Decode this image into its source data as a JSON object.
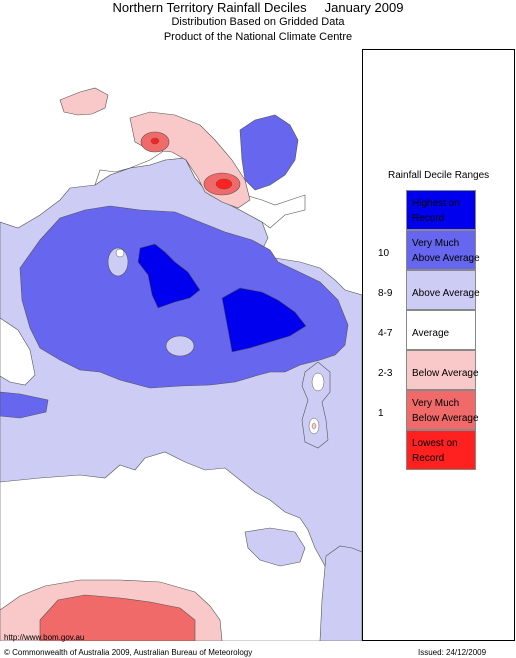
{
  "title": "Northern Territory Rainfall Deciles     January 2009",
  "subtitle1": "Distribution Based on Gridded Data",
  "subtitle2": "Product of the National Climate Centre",
  "legend": {
    "title": "Rainfall Decile Ranges",
    "items": [
      {
        "label": "Highest on\nRecord",
        "rank": "",
        "color": "#0000ee"
      },
      {
        "label": "Very Much\nAbove Average",
        "rank": "10",
        "color": "#6666ee"
      },
      {
        "label": "Above Average",
        "rank": "8-9",
        "color": "#ccccf5"
      },
      {
        "label": "Average",
        "rank": "4-7",
        "color": "#ffffff"
      },
      {
        "label": "Below Average",
        "rank": "2-3",
        "color": "#f9c8c8"
      },
      {
        "label": "Very Much\nBelow Average",
        "rank": "1",
        "color": "#f06a6a"
      },
      {
        "label": "Lowest on\nRecord",
        "rank": "",
        "color": "#ff2020"
      }
    ]
  },
  "footer": {
    "url": "http://www.bom.gov.au",
    "copyright": "© Commonwealth of Australia 2009, Australian Bureau of Meteorology",
    "issued": "Issued: 24/12/2009"
  }
}
